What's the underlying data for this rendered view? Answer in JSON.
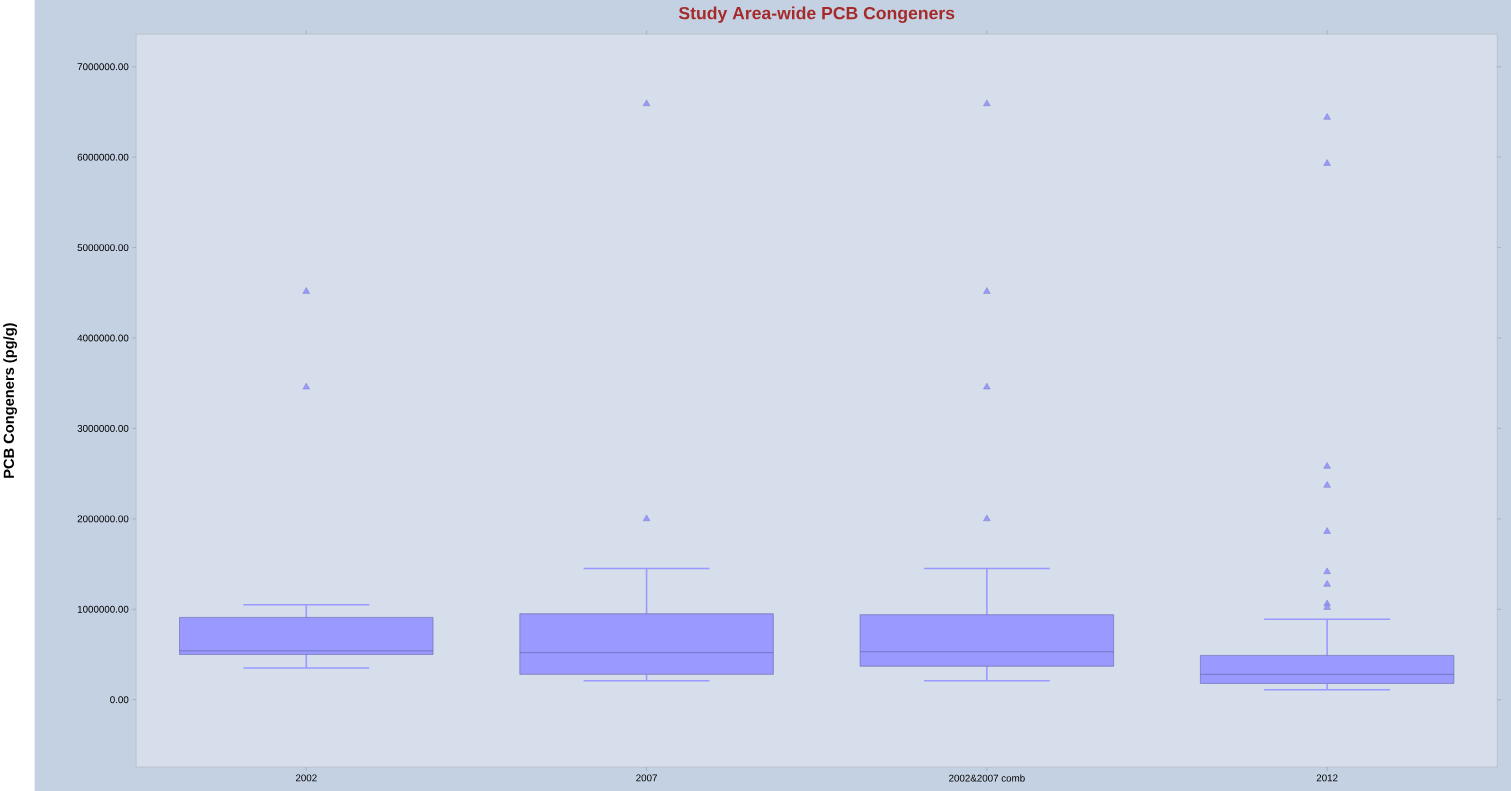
{
  "chart_data": {
    "type": "box",
    "title": "Study Area-wide PCB Congeners",
    "ylabel": "PCB Congeners (pg/g)",
    "categories": [
      "2002",
      "2007",
      "2002&2007 comb",
      "2012"
    ],
    "ylim": [
      -745000,
      7360000
    ],
    "yticks": [
      {
        "value": 0,
        "label": "0.00"
      },
      {
        "value": 1000000,
        "label": "1000000.00"
      },
      {
        "value": 2000000,
        "label": "2000000.00"
      },
      {
        "value": 3000000,
        "label": "3000000.00"
      },
      {
        "value": 4000000,
        "label": "4000000.00"
      },
      {
        "value": 5000000,
        "label": "5000000.00"
      },
      {
        "value": 6000000,
        "label": "6000000.00"
      },
      {
        "value": 7000000,
        "label": "7000000.00"
      }
    ],
    "grid": false,
    "marker": "triangle",
    "series": [
      {
        "color": "#9999ff",
        "boxes": [
          {
            "low": 350000,
            "q1": 500000,
            "median": 540000,
            "q3": 910000,
            "high": 1050000,
            "outliers": [
              4515000,
              3457000
            ]
          },
          {
            "low": 210000,
            "q1": 280000,
            "median": 520000,
            "q3": 950000,
            "high": 1450000,
            "outliers": [
              6590000,
              2000000
            ]
          },
          {
            "low": 210000,
            "q1": 370000,
            "median": 530000,
            "q3": 940000,
            "high": 1450000,
            "outliers": [
              6590000,
              4515000,
              3457000,
              2000000
            ]
          },
          {
            "low": 110000,
            "q1": 180000,
            "median": 280000,
            "q3": 490000,
            "high": 890000,
            "outliers": [
              6440000,
              5930000,
              2580000,
              2370000,
              1860000,
              1415000,
              1275000,
              1060000,
              1020000
            ]
          }
        ]
      }
    ]
  }
}
